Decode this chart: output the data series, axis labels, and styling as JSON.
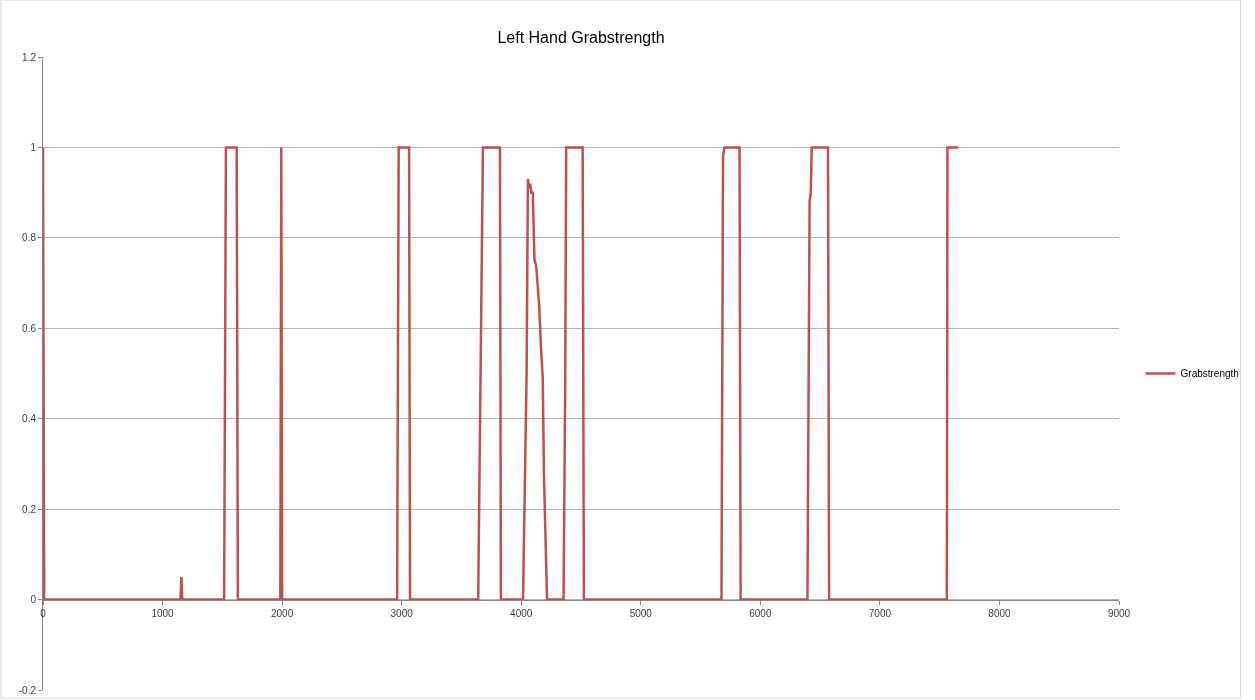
{
  "chart_data": {
    "type": "line",
    "title": "Left Hand Grabstrength",
    "series": [
      {
        "name": "Grabstrength",
        "color": "#c0504d",
        "x": [
          0,
          0,
          10,
          1150,
          1158,
          1165,
          1515,
          1530,
          1620,
          1630,
          1985,
          1993,
          2000,
          2962,
          2975,
          3062,
          3070,
          3640,
          3680,
          3822,
          3830,
          4015,
          4045,
          4056,
          4065,
          4075,
          4085,
          4097,
          4111,
          4125,
          4150,
          4165,
          4180,
          4190,
          4200,
          4216,
          4354,
          4368,
          4376,
          4514,
          4524,
          5675,
          5688,
          5700,
          5826,
          5835,
          6394,
          6412,
          6422,
          6430,
          6566,
          6575,
          7560,
          7565,
          7655
        ],
        "values": [
          1,
          1,
          0,
          0,
          0.05,
          0,
          0,
          1,
          1,
          0,
          0,
          1,
          0,
          0,
          1,
          1,
          0,
          0,
          1,
          1,
          0,
          0,
          0.5,
          0.93,
          0.91,
          0.92,
          0.9,
          0.9,
          0.75,
          0.74,
          0.65,
          0.56,
          0.49,
          0.28,
          0.17,
          0,
          0,
          0.48,
          1,
          1,
          0,
          0,
          0.98,
          1,
          1,
          0,
          0,
          0.88,
          0.9,
          1,
          1,
          0,
          0,
          1,
          1
        ]
      }
    ],
    "xlim": [
      0,
      9000
    ],
    "xticks": [
      0,
      1000,
      2000,
      3000,
      4000,
      5000,
      6000,
      7000,
      8000,
      9000
    ],
    "ylim": [
      -0.2,
      1.2
    ],
    "yticks": [
      -0.2,
      0,
      0.2,
      0.4,
      0.6,
      0.8,
      1,
      1.2
    ],
    "grid": "y",
    "legend": "right",
    "marker": "none",
    "line_style": "solid"
  }
}
